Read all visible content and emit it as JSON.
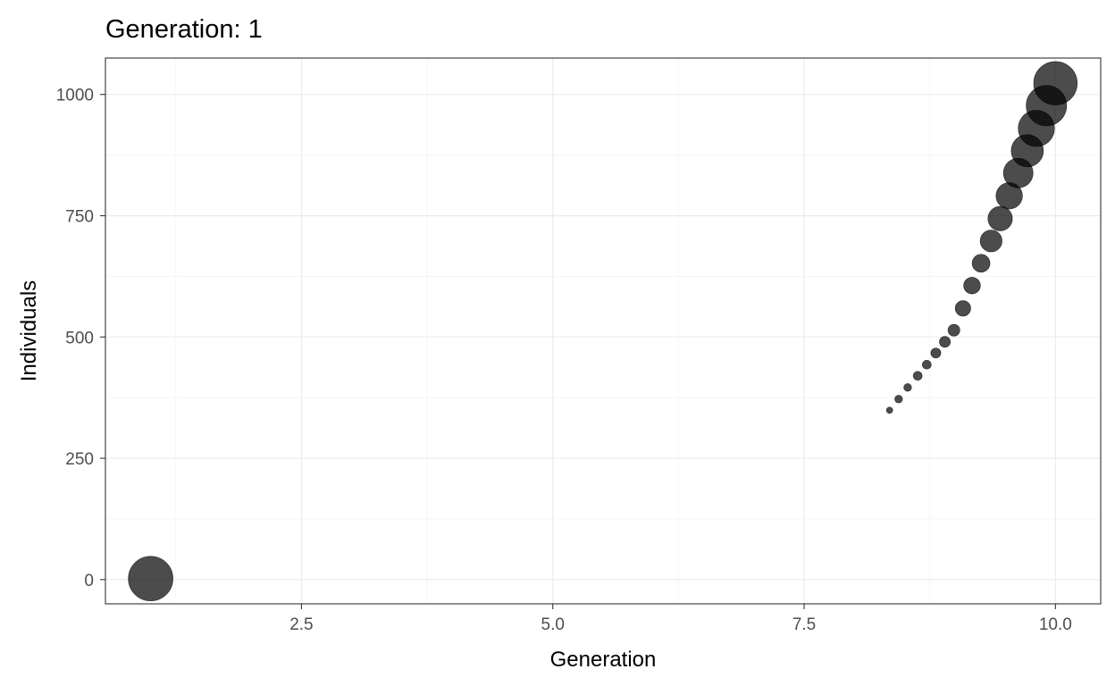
{
  "chart_data": {
    "type": "scatter",
    "title": "Generation: 1",
    "xlabel": "Generation",
    "ylabel": "Individuals",
    "xlim": [
      0.55,
      10.45
    ],
    "ylim": [
      -50,
      1075
    ],
    "x_ticks": [
      2.5,
      5.0,
      7.5,
      10.0
    ],
    "x_tick_labels": [
      "2.5",
      "5.0",
      "7.5",
      "10.0"
    ],
    "y_ticks": [
      0,
      250,
      500,
      750,
      1000
    ],
    "y_tick_labels": [
      "0",
      "250",
      "500",
      "750",
      "1000"
    ],
    "grid": true,
    "legend": "none",
    "point_color": "#000000",
    "point_opacity": 0.7,
    "points": [
      {
        "x": 1.0,
        "y": 2,
        "size": 1.0
      },
      {
        "x": 8.35,
        "y": 349,
        "size": 0.02
      },
      {
        "x": 8.44,
        "y": 372,
        "size": 0.03
      },
      {
        "x": 8.53,
        "y": 396,
        "size": 0.03
      },
      {
        "x": 8.63,
        "y": 420,
        "size": 0.04
      },
      {
        "x": 8.72,
        "y": 443,
        "size": 0.04
      },
      {
        "x": 8.81,
        "y": 467,
        "size": 0.05
      },
      {
        "x": 8.9,
        "y": 490,
        "size": 0.06
      },
      {
        "x": 8.99,
        "y": 514,
        "size": 0.07
      },
      {
        "x": 9.08,
        "y": 559,
        "size": 0.12
      },
      {
        "x": 9.17,
        "y": 606,
        "size": 0.14
      },
      {
        "x": 9.26,
        "y": 652,
        "size": 0.16
      },
      {
        "x": 9.36,
        "y": 698,
        "size": 0.24
      },
      {
        "x": 9.45,
        "y": 744,
        "size": 0.3
      },
      {
        "x": 9.54,
        "y": 791,
        "size": 0.35
      },
      {
        "x": 9.63,
        "y": 838,
        "size": 0.44
      },
      {
        "x": 9.72,
        "y": 884,
        "size": 0.52
      },
      {
        "x": 9.81,
        "y": 930,
        "size": 0.66
      },
      {
        "x": 9.91,
        "y": 977,
        "size": 0.82
      },
      {
        "x": 10.0,
        "y": 1023,
        "size": 0.95
      }
    ]
  }
}
